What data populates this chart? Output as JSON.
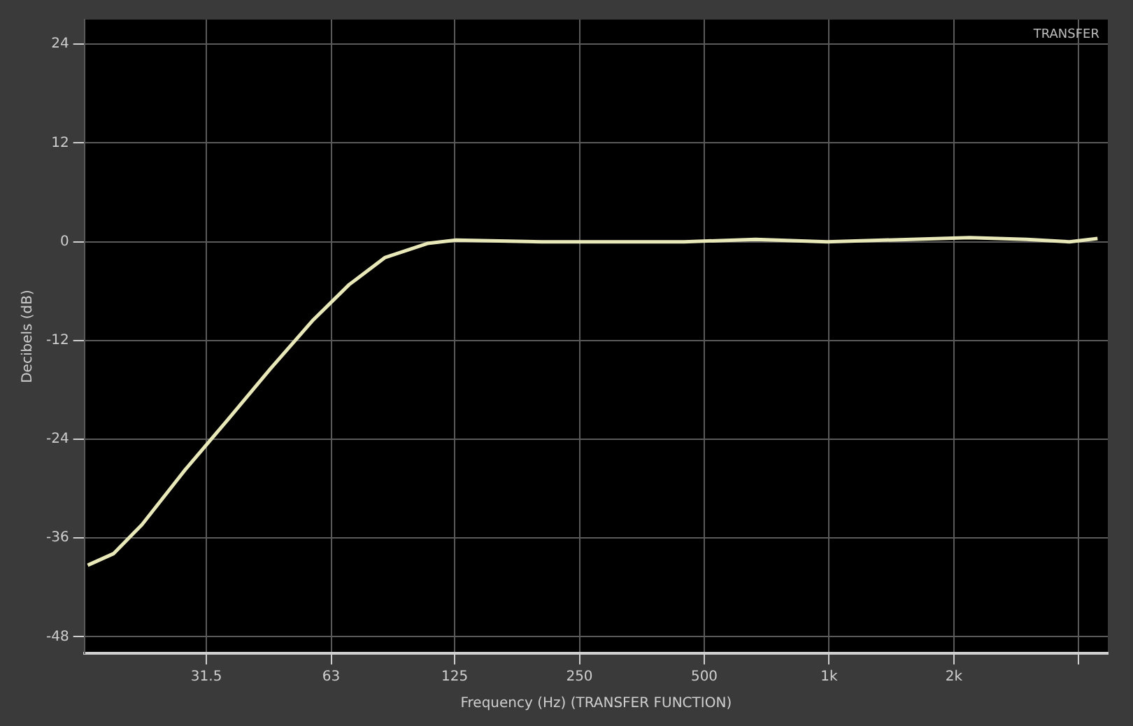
{
  "chart_data": {
    "type": "line",
    "xlabel": "Frequency (Hz) (TRANSFER FUNCTION)",
    "ylabel": "Decibels (dB)",
    "annotations": [
      "TRANSFER"
    ],
    "log": "x",
    "grid": true,
    "legend": false,
    "marker": "none",
    "line_style": "solid",
    "xlim": [
      16,
      4700
    ],
    "xticks": [
      {
        "value": 31.5,
        "label": "31.5"
      },
      63,
      125,
      250,
      500,
      {
        "value": 1000,
        "label": "1k"
      },
      {
        "value": 2000,
        "label": "2k"
      },
      {
        "value": 4000,
        "label": null
      }
    ],
    "ylim": [
      -50,
      27
    ],
    "yticks": [
      -48,
      -36,
      -24,
      -12,
      0,
      12,
      24
    ],
    "series": [
      {
        "color": "#e8e8b8",
        "x": [
          16.3,
          18.8,
          22,
          28,
          35.5,
          45,
          57,
          69.6,
          85,
          107.5,
          126,
          203,
          447,
          665,
          989,
          2183,
          2995,
          3800,
          4440
        ],
        "values": [
          -39.3,
          -37.9,
          -34.4,
          -27.7,
          -21.6,
          -15.4,
          -9.5,
          -5.2,
          -1.9,
          -0.2,
          0.2,
          0,
          0,
          0.3,
          0,
          0.5,
          0.3,
          0,
          0.4
        ]
      }
    ]
  }
}
